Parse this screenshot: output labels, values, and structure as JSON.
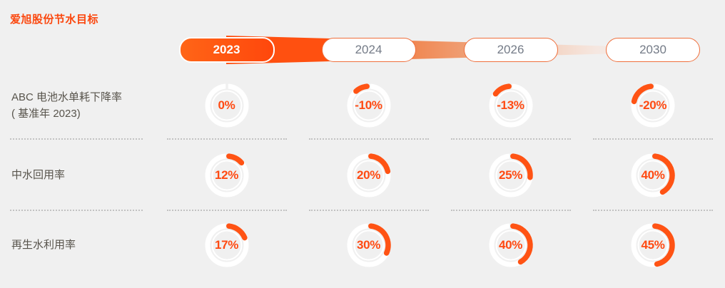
{
  "page": {
    "background": "#f0f0f0"
  },
  "header": {
    "title": "爱旭股份节水目标",
    "color": "#fb470e"
  },
  "timeline": {
    "years": [
      {
        "label": "2023",
        "active": true
      },
      {
        "label": "2024",
        "active": false
      },
      {
        "label": "2026",
        "active": false
      },
      {
        "label": "2030",
        "active": false
      }
    ]
  },
  "chart_data": {
    "type": "table",
    "cell_style": "donut-gauge",
    "title": "爱旭股份节水目标",
    "columns": [
      "2023",
      "2024",
      "2026",
      "2030"
    ],
    "rows": [
      {
        "label_lines": [
          "ABC 电池水单耗下降率",
          "( 基准年 2023)"
        ],
        "values_pct": [
          0,
          -10,
          -13,
          -20
        ],
        "labels": [
          "0%",
          "-10%",
          "-13%",
          "-20%"
        ]
      },
      {
        "label_lines": [
          "中水回用率"
        ],
        "values_pct": [
          12,
          20,
          25,
          40
        ],
        "labels": [
          "12%",
          "20%",
          "25%",
          "40%"
        ]
      },
      {
        "label_lines": [
          "再生水利用率"
        ],
        "values_pct": [
          17,
          30,
          40,
          45
        ],
        "labels": [
          "17%",
          "30%",
          "40%",
          "45%"
        ]
      }
    ],
    "colors": {
      "arc": "#ff5314",
      "track": "#ffffff",
      "value_text": "#ff4a12",
      "row_label_text": "#58544c",
      "background": "#f0f0f0"
    },
    "legend_position": "none",
    "grid": false
  }
}
